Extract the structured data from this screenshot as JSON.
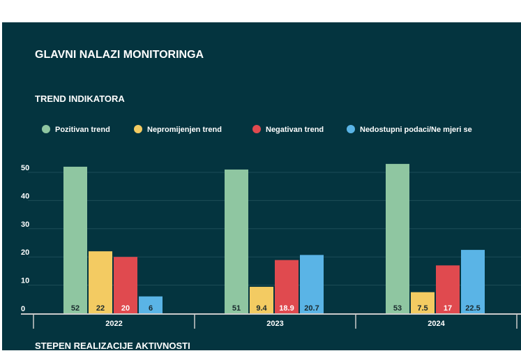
{
  "title": "GLAVNI NALAZI MONITORINGA",
  "next_section": "STEPEN REALIZACIJE AKTIVNOSTI",
  "chart_data": {
    "type": "bar",
    "title": "TREND INDIKATORA",
    "categories": [
      "2022",
      "2023",
      "2024"
    ],
    "series": [
      {
        "name": "Pozitivan trend",
        "color": "#8fc6a1",
        "values": [
          52,
          51,
          53
        ]
      },
      {
        "name": "Nepromijenjen trend",
        "color": "#f3cb62",
        "values": [
          22,
          9.4,
          7.5
        ]
      },
      {
        "name": "Negativan trend",
        "color": "#e04a4f",
        "values": [
          20,
          18.9,
          17
        ]
      },
      {
        "name": "Nedostupni podaci/Ne mjeri se",
        "color": "#5ab4e6",
        "values": [
          6,
          20.7,
          22.5
        ]
      }
    ],
    "yticks": [
      0,
      10,
      20,
      30,
      40,
      50
    ],
    "ylim": [
      0,
      55
    ],
    "grid": true,
    "legend": "top-left"
  }
}
